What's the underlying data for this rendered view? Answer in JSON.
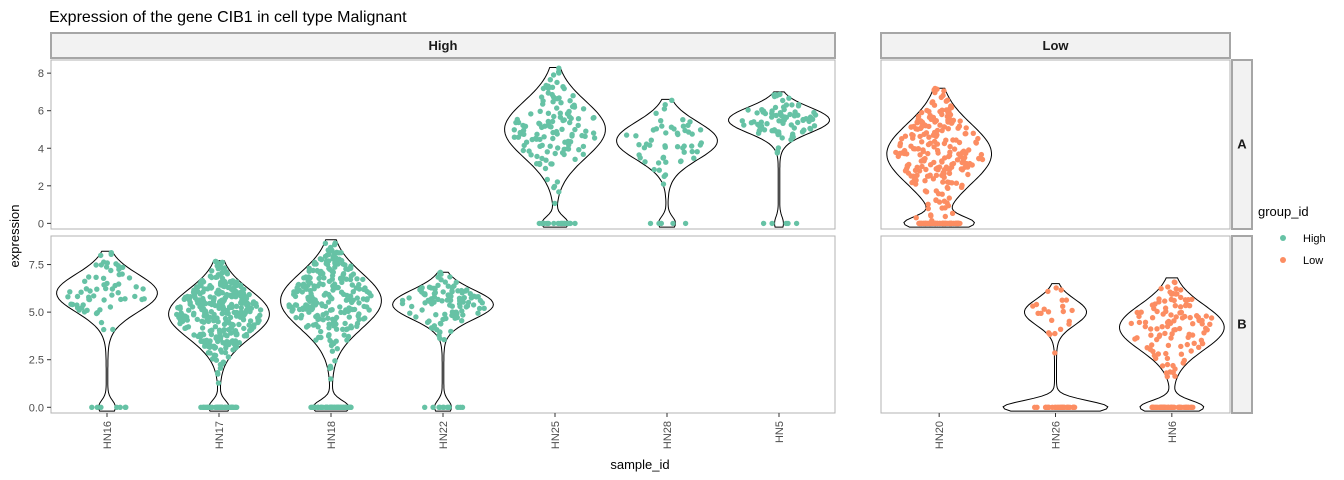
{
  "chart_data": {
    "type": "violin",
    "title": "Expression of the gene CIB1 in cell type Malignant",
    "xlabel": "sample_id",
    "ylabel": "expression",
    "facet_columns": [
      "High",
      "Low"
    ],
    "facet_rows": [
      "A",
      "B"
    ],
    "legend": {
      "title": "group_id",
      "position": "right",
      "entries": [
        {
          "label": "High",
          "color": "#66c2a5"
        },
        {
          "label": "Low",
          "color": "#fc8d62"
        }
      ]
    },
    "rows": [
      {
        "label": "A",
        "ylim": [
          -0.3,
          8.7
        ],
        "yticks": [
          0,
          2,
          4,
          6,
          8
        ],
        "ytick_labels": [
          "0",
          "2",
          "4",
          "6",
          "8"
        ]
      },
      {
        "label": "B",
        "ylim": [
          -0.3,
          9.0
        ],
        "yticks": [
          0,
          2.5,
          5,
          7.5
        ],
        "ytick_labels": [
          "0.0",
          "2.5",
          "5.0",
          "7.5"
        ]
      }
    ],
    "columns": [
      {
        "label": "High",
        "categories": [
          "HN16",
          "HN17",
          "HN18",
          "HN22",
          "HN25",
          "HN28",
          "HN5"
        ]
      },
      {
        "label": "Low",
        "categories": [
          "HN20",
          "HN26",
          "HN6"
        ]
      }
    ],
    "violins": [
      {
        "sample": "HN25",
        "group": "High",
        "row": "A",
        "max": 8.3,
        "mode": 5.0,
        "zero_frac": 0.15,
        "n": 150
      },
      {
        "sample": "HN28",
        "group": "High",
        "row": "A",
        "max": 6.6,
        "mode": 4.4,
        "zero_frac": 0.1,
        "n": 60
      },
      {
        "sample": "HN5",
        "group": "High",
        "row": "A",
        "max": 7.0,
        "mode": 5.5,
        "zero_frac": 0.05,
        "n": 90
      },
      {
        "sample": "HN20",
        "group": "Low",
        "row": "A",
        "max": 7.2,
        "mode": 3.7,
        "zero_frac": 0.3,
        "n": 320
      },
      {
        "sample": "HN16",
        "group": "High",
        "row": "B",
        "max": 8.2,
        "mode": 6.0,
        "zero_frac": 0.1,
        "n": 70
      },
      {
        "sample": "HN17",
        "group": "High",
        "row": "B",
        "max": 7.7,
        "mode": 4.9,
        "zero_frac": 0.12,
        "n": 380
      },
      {
        "sample": "HN18",
        "group": "High",
        "row": "B",
        "max": 8.8,
        "mode": 5.6,
        "zero_frac": 0.2,
        "n": 300
      },
      {
        "sample": "HN22",
        "group": "High",
        "row": "B",
        "max": 7.1,
        "mode": 5.4,
        "zero_frac": 0.1,
        "n": 120
      },
      {
        "sample": "HN26",
        "group": "Low",
        "row": "B",
        "max": 6.5,
        "mode": 5.0,
        "zero_frac": 0.55,
        "n": 50
      },
      {
        "sample": "HN6",
        "group": "Low",
        "row": "B",
        "max": 6.8,
        "mode": 4.2,
        "zero_frac": 0.3,
        "n": 160
      }
    ]
  }
}
